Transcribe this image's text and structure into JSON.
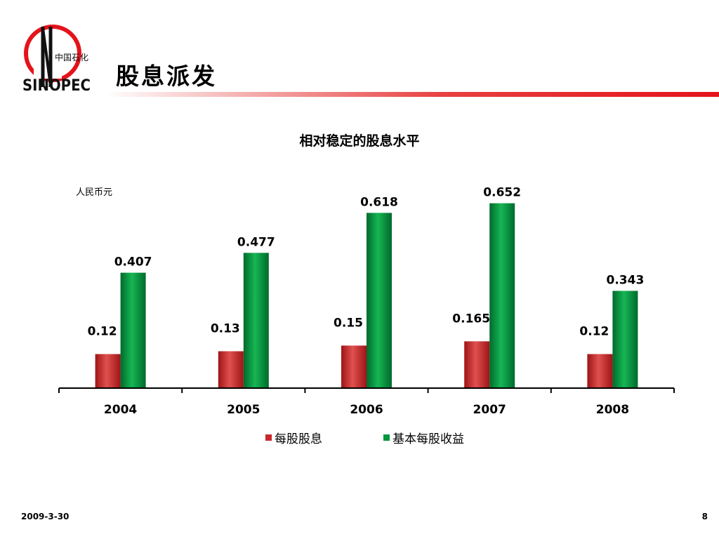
{
  "header": {
    "logo_chinese": "中国石化",
    "logo_word": "SINOPEC",
    "title": "股息派发"
  },
  "colors": {
    "dividend": "#c8282a",
    "eps": "#009640",
    "accent_rule": "#e4141b"
  },
  "footer": {
    "date": "2009-3-30",
    "page_number": "8"
  },
  "chart_data": {
    "type": "bar",
    "title": "相对稳定的股息水平",
    "unit_label": "人民币元",
    "categories": [
      "2004",
      "2005",
      "2006",
      "2007",
      "2008"
    ],
    "series": [
      {
        "name": "每股股息",
        "color": "#c8282a",
        "values": [
          0.12,
          0.13,
          0.15,
          0.165,
          0.12
        ],
        "labels": [
          "0.12",
          "0.13",
          "0.15",
          "0.165",
          "0.12"
        ]
      },
      {
        "name": "基本每股收益",
        "color": "#009640",
        "values": [
          0.407,
          0.477,
          0.618,
          0.652,
          0.343
        ],
        "labels": [
          "0.407",
          "0.477",
          "0.618",
          "0.652",
          "0.343"
        ]
      }
    ],
    "ylim": [
      0,
      0.7
    ],
    "grid": false,
    "legend_position": "bottom"
  }
}
